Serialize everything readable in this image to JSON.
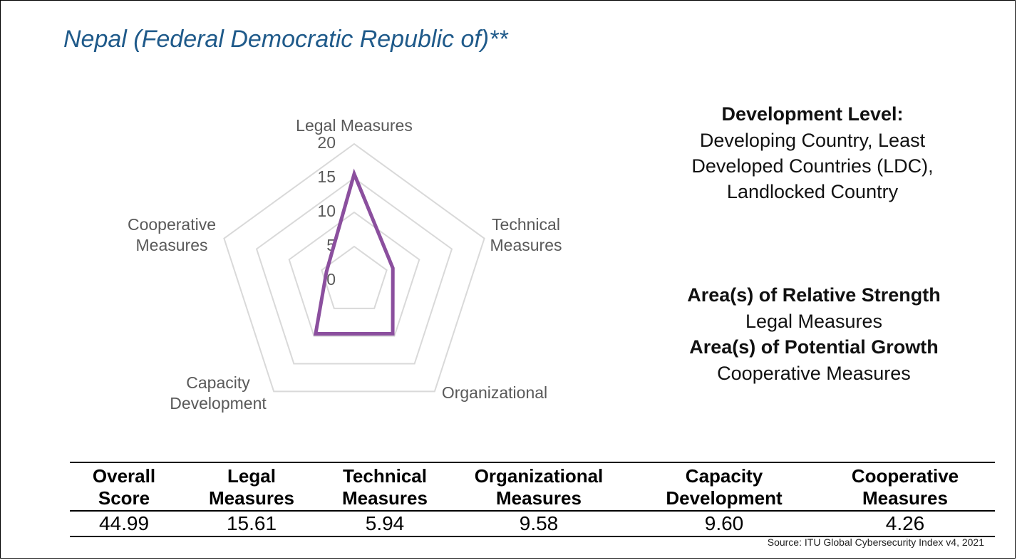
{
  "page_title": "Nepal (Federal Democratic Republic of)**",
  "chart_data": {
    "type": "radar",
    "axes": [
      "Legal Measures",
      "Technical Measures",
      "Organizational",
      "Capacity Development",
      "Cooperative Measures"
    ],
    "axis_label_lines": [
      [
        "Legal Measures"
      ],
      [
        "Technical",
        "Measures"
      ],
      [
        "Organizational"
      ],
      [
        "Capacity",
        "Development"
      ],
      [
        "Cooperative",
        "Measures"
      ]
    ],
    "values": [
      15.61,
      5.94,
      9.58,
      9.6,
      4.26
    ],
    "rlim": [
      0,
      20
    ],
    "ticks": [
      0,
      5,
      10,
      15,
      20
    ],
    "series_color": "#8b4f9e",
    "grid_color": "#d9d9d9",
    "legend": "none"
  },
  "info": {
    "dev_level_heading": "Development Level:",
    "dev_level_lines": [
      "Developing Country, Least",
      "Developed Countries (LDC),",
      "Landlocked Country"
    ],
    "strength_heading": "Area(s) of Relative Strength",
    "strength_value": "Legal Measures",
    "growth_heading": "Area(s) of Potential Growth",
    "growth_value": "Cooperative Measures"
  },
  "table": {
    "headers": [
      [
        "Overall",
        "Score"
      ],
      [
        "Legal",
        "Measures"
      ],
      [
        "Technical",
        "Measures"
      ],
      [
        "Organizational",
        "Measures"
      ],
      [
        "Capacity",
        "Development"
      ],
      [
        "Cooperative",
        "Measures"
      ]
    ],
    "values": [
      "44.99",
      "15.61",
      "5.94",
      "9.58",
      "9.60",
      "4.26"
    ]
  },
  "source": "Source: ITU Global Cybersecurity Index v4, 2021",
  "colors": {
    "title": "#1f5a8a",
    "text": "#111111",
    "axis_label": "#595959"
  }
}
